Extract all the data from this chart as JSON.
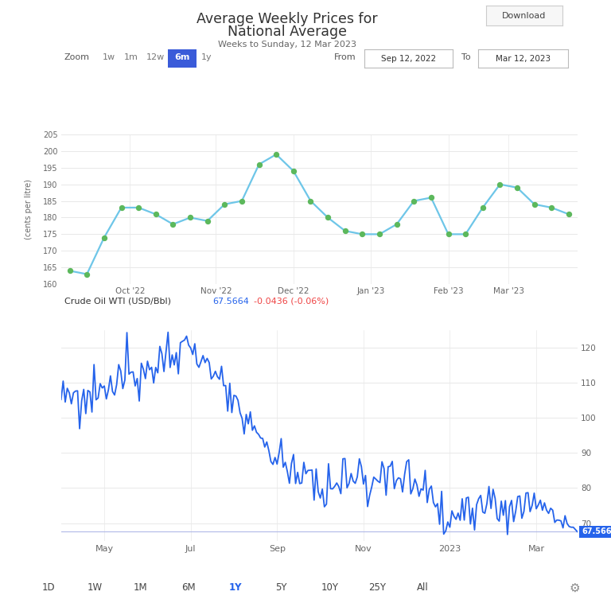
{
  "title_line1": "Average Weekly Prices for",
  "title_line2": "National Average",
  "subtitle": "Weeks to Sunday, 12 Mar 2023",
  "download_btn": "Download",
  "zoom_label": "Zoom",
  "zoom_options": [
    "1w",
    "1m",
    "12w",
    "6m",
    "1y"
  ],
  "zoom_active": "6m",
  "from_label": "From",
  "from_date": "Sep 12, 2022",
  "to_label": "To",
  "to_date": "Mar 12, 2023",
  "top_chart": {
    "ylabel": "(cents per litre)",
    "ylim": [
      160,
      205
    ],
    "yticks": [
      160,
      165,
      170,
      175,
      180,
      185,
      190,
      195,
      200,
      205
    ],
    "xtick_labels": [
      "Oct '22",
      "Nov '22",
      "Dec '22",
      "Jan '23",
      "Feb '23",
      "Mar '23"
    ],
    "line_color": "#6ec6e8",
    "dot_color": "#5cb85c",
    "dot_size": 28,
    "line_width": 1.6,
    "y_values": [
      164,
      163,
      174,
      183,
      183,
      181,
      178,
      180,
      179,
      184,
      185,
      196,
      199,
      194,
      185,
      180,
      176,
      175,
      175,
      178,
      185,
      186,
      175,
      175,
      183,
      190,
      189,
      184,
      183,
      181
    ]
  },
  "bottom_chart": {
    "label_text": "Crude Oil WTI (USD/Bbl)",
    "price_value": "67.5664",
    "change_value": "-0.0436 (-0.06%)",
    "price_color": "#2563eb",
    "change_color": "#ef4444",
    "ylim": [
      65,
      125
    ],
    "yticks": [
      70,
      80,
      90,
      100,
      110,
      120
    ],
    "xtick_labels": [
      "May",
      "Jul",
      "Sep",
      "Nov",
      "2023",
      "Mar"
    ],
    "line_color": "#2563eb",
    "line_width": 1.3,
    "last_price_label": "67.566",
    "last_price_bg": "#2563eb",
    "last_price_color": "#ffffff",
    "hline_value": 67.566,
    "hline_color": "#b0b8e8"
  },
  "bottom_nav": {
    "options": [
      "1D",
      "1W",
      "1M",
      "6M",
      "1Y",
      "5Y",
      "10Y",
      "25Y",
      "All"
    ],
    "active": "1Y",
    "active_color": "#2563eb",
    "inactive_color": "#444444"
  },
  "bg_color": "#ffffff",
  "grid_color": "#e8e8e8",
  "text_color": "#333333",
  "label_color": "#666666"
}
